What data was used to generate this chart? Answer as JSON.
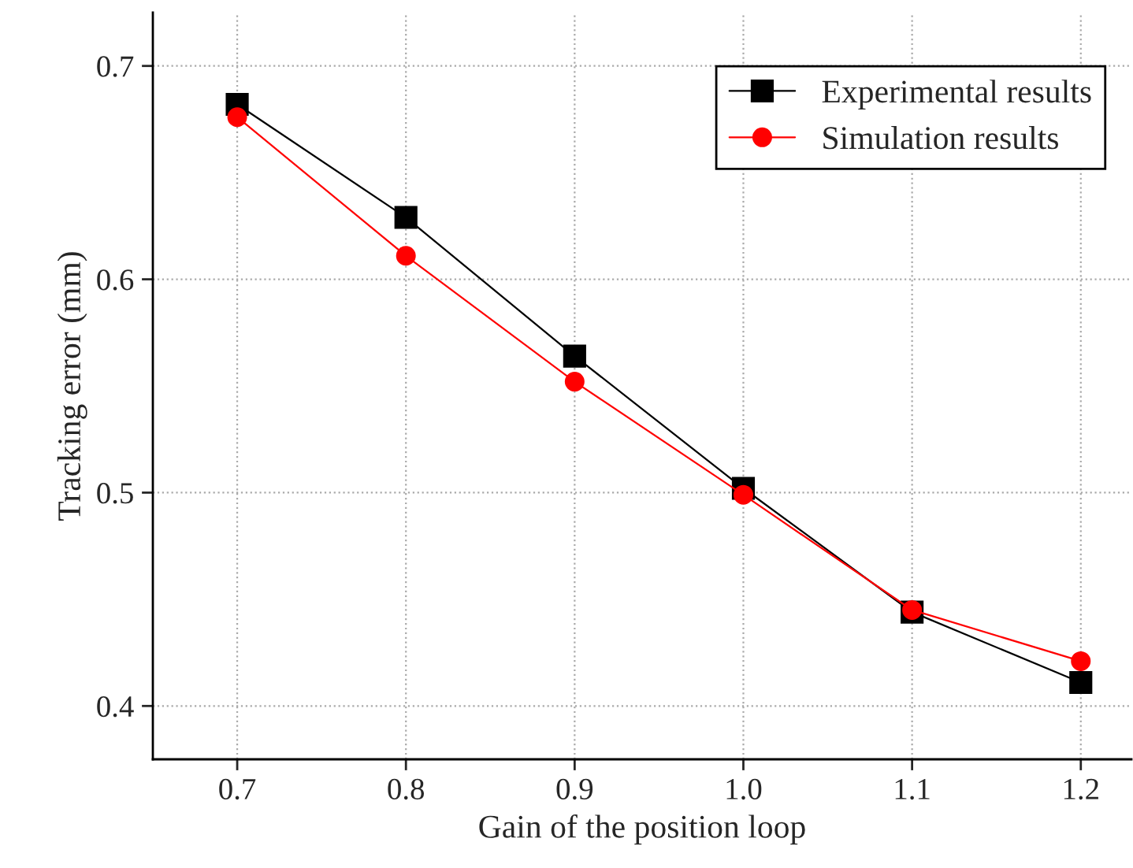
{
  "chart_data": {
    "type": "line",
    "xlabel": "Gain of the position loop",
    "ylabel": "Tracking error (mm)",
    "x": [
      0.7,
      0.8,
      0.9,
      1.0,
      1.1,
      1.2
    ],
    "series": [
      {
        "name": "Experimental results",
        "color": "#000000",
        "marker": "square",
        "values": [
          0.682,
          0.629,
          0.564,
          0.502,
          0.444,
          0.411
        ]
      },
      {
        "name": "Simulation results",
        "color": "#ff0000",
        "marker": "circle",
        "values": [
          0.676,
          0.611,
          0.552,
          0.499,
          0.445,
          0.421
        ]
      }
    ],
    "xlim": [
      0.65,
      1.23
    ],
    "xticks": [
      {
        "value": 0.7,
        "label": "0.7"
      },
      {
        "value": 0.8,
        "label": "0.8"
      },
      {
        "value": 0.9,
        "label": "0.9"
      },
      {
        "value": 1.0,
        "label": "1.0"
      },
      {
        "value": 1.1,
        "label": "1.1"
      },
      {
        "value": 1.2,
        "label": "1.2"
      }
    ],
    "ylim": [
      0.375,
      0.725
    ],
    "yticks": [
      {
        "value": 0.4,
        "label": "0.4"
      },
      {
        "value": 0.5,
        "label": "0.5"
      },
      {
        "value": 0.6,
        "label": "0.6"
      },
      {
        "value": 0.7,
        "label": "0.7"
      }
    ],
    "grid": true,
    "legend": "top right",
    "line_style": "solid"
  }
}
